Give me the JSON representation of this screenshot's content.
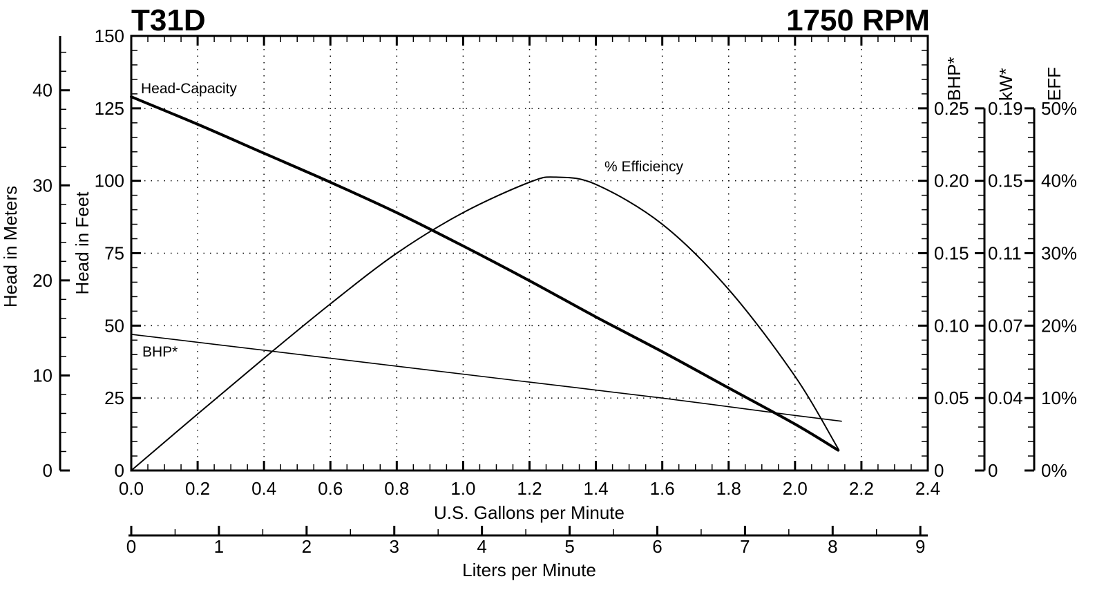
{
  "header": {
    "model": "T31D",
    "speed": "1750 RPM"
  },
  "chart_data": {
    "type": "line",
    "title": "T31D 1750 RPM",
    "xlabel": "U.S. Gallons per Minute",
    "xlabel_secondary": "Liters per Minute",
    "ylabel": "Head in Feet",
    "ylabel_secondary": "Head in Meters",
    "right_axes_labels": [
      "BHP*",
      "kW*",
      "EFF"
    ],
    "xlim": [
      0,
      2.4
    ],
    "ylim": [
      0,
      150
    ],
    "grid": true,
    "x_ticks": [
      "0.0",
      "0.2",
      "0.4",
      "0.6",
      "0.8",
      "1.0",
      "1.2",
      "1.4",
      "1.6",
      "1.8",
      "2.0",
      "2.2",
      "2.4"
    ],
    "y_ticks": [
      "0",
      "25",
      "50",
      "75",
      "100",
      "125",
      "150"
    ],
    "meters_ticks": [
      "0",
      "10",
      "20",
      "30",
      "40"
    ],
    "lpm_ticks": [
      "0",
      "1",
      "2",
      "3",
      "4",
      "5",
      "6",
      "7",
      "8",
      "9"
    ],
    "bhp_ticks": [
      "0",
      "0.05",
      "0.10",
      "0.15",
      "0.20",
      "0.25"
    ],
    "kw_ticks": [
      "0",
      "0.04",
      "0.07",
      "0.11",
      "0.15",
      "0.19"
    ],
    "eff_ticks": [
      "0%",
      "10%",
      "20%",
      "30%",
      "40%",
      "50%"
    ],
    "series": [
      {
        "name": "Head-Capacity",
        "unit": "ft",
        "x": [
          0.0,
          0.2,
          0.4,
          0.6,
          0.8,
          1.0,
          1.2,
          1.4,
          1.6,
          1.8,
          2.0,
          2.13
        ],
        "values": [
          129,
          119.5,
          109.5,
          99.5,
          89,
          77.5,
          65.5,
          53,
          41,
          28.5,
          16,
          7
        ]
      },
      {
        "name": "% Efficiency",
        "unit": "%",
        "x": [
          0.0,
          0.2,
          0.4,
          0.6,
          0.8,
          1.0,
          1.2,
          1.28,
          1.4,
          1.6,
          1.8,
          2.0,
          2.13
        ],
        "values": [
          0,
          7.8,
          15.5,
          23,
          30,
          35.6,
          39.8,
          40.5,
          39.5,
          34,
          25,
          13,
          3
        ]
      },
      {
        "name": "BHP*",
        "unit": "hp",
        "x": [
          0.0,
          0.4,
          0.8,
          1.2,
          1.6,
          2.0,
          2.14
        ],
        "values": [
          0.094,
          0.083,
          0.072,
          0.061,
          0.05,
          0.038,
          0.034
        ]
      }
    ],
    "annotations": [
      "Head-Capacity",
      "% Efficiency",
      "BHP*"
    ]
  }
}
